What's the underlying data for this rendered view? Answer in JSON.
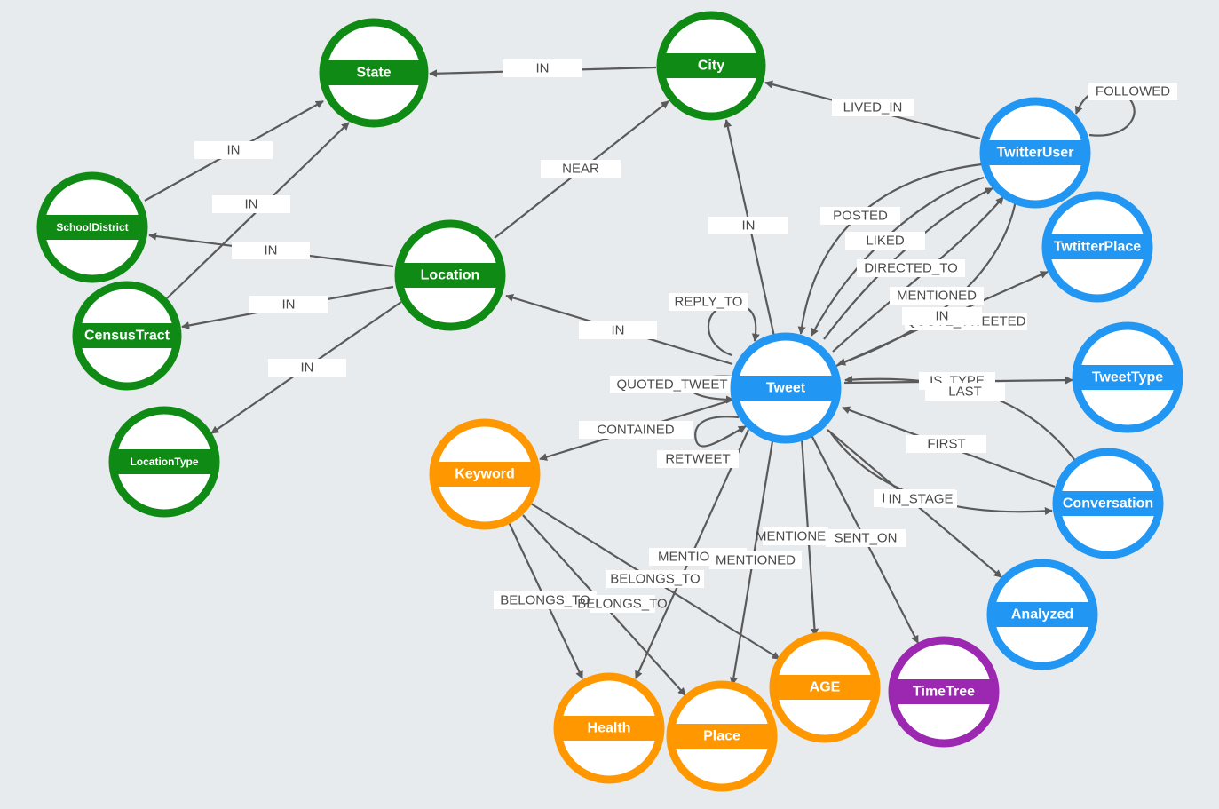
{
  "colors": {
    "location_group": "#0f8a14",
    "twitter_group": "#2196f3",
    "keyword_group": "#ff9800",
    "time_group": "#9c27b0",
    "edge": "#5a5a5a",
    "background": "#e8ebee"
  },
  "nodes": [
    {
      "id": "state",
      "label": "State",
      "color": "#0f8a14"
    },
    {
      "id": "city",
      "label": "City",
      "color": "#0f8a14"
    },
    {
      "id": "schooldistrict",
      "label": "SchoolDistrict",
      "color": "#0f8a14"
    },
    {
      "id": "censustract",
      "label": "CensusTract",
      "color": "#0f8a14"
    },
    {
      "id": "location",
      "label": "Location",
      "color": "#0f8a14"
    },
    {
      "id": "locationtype",
      "label": "LocationType",
      "color": "#0f8a14"
    },
    {
      "id": "twitteruser",
      "label": "TwitterUser",
      "color": "#2196f3"
    },
    {
      "id": "twtitterplace",
      "label": "TwtitterPlace",
      "color": "#2196f3"
    },
    {
      "id": "tweet",
      "label": "Tweet",
      "color": "#2196f3"
    },
    {
      "id": "tweettype",
      "label": "TweetType",
      "color": "#2196f3"
    },
    {
      "id": "conversation",
      "label": "Conversation",
      "color": "#2196f3"
    },
    {
      "id": "analyzed",
      "label": "Analyzed",
      "color": "#2196f3"
    },
    {
      "id": "keyword",
      "label": "Keyword",
      "color": "#ff9800"
    },
    {
      "id": "health",
      "label": "Health",
      "color": "#ff9800"
    },
    {
      "id": "place",
      "label": "Place",
      "color": "#ff9800"
    },
    {
      "id": "age",
      "label": "AGE",
      "color": "#ff9800"
    },
    {
      "id": "timetree",
      "label": "TimeTree",
      "color": "#9c27b0"
    }
  ],
  "edges": [
    {
      "id": "e_city_state",
      "from": "city",
      "to": "state",
      "label": "IN"
    },
    {
      "id": "e_sd_state",
      "from": "schooldistrict",
      "to": "state",
      "label": "IN"
    },
    {
      "id": "e_ct_state",
      "from": "censustract",
      "to": "state",
      "label": "IN"
    },
    {
      "id": "e_loc_city",
      "from": "location",
      "to": "city",
      "label": "NEAR"
    },
    {
      "id": "e_loc_sd",
      "from": "location",
      "to": "schooldistrict",
      "label": "IN"
    },
    {
      "id": "e_loc_ct",
      "from": "location",
      "to": "censustract",
      "label": "IN"
    },
    {
      "id": "e_loc_lt",
      "from": "location",
      "to": "locationtype",
      "label": "IN"
    },
    {
      "id": "e_tweet_loc",
      "from": "tweet",
      "to": "location",
      "label": "IN"
    },
    {
      "id": "e_tweet_city",
      "from": "tweet",
      "to": "city",
      "label": "IN"
    },
    {
      "id": "e_tu_city",
      "from": "twitteruser",
      "to": "city",
      "label": "LIVED_IN"
    },
    {
      "id": "e_tu_followed",
      "from": "twitteruser",
      "to": "twitteruser",
      "label": "FOLLOWED"
    },
    {
      "id": "e_tu_posted",
      "from": "twitteruser",
      "to": "tweet",
      "label": "POSTED"
    },
    {
      "id": "e_tu_liked",
      "from": "twitteruser",
      "to": "tweet",
      "label": "LIKED"
    },
    {
      "id": "e_tweet_dir",
      "from": "tweet",
      "to": "twitteruser",
      "label": "DIRECTED_TO"
    },
    {
      "id": "e_tweet_ment",
      "from": "tweet",
      "to": "twitteruser",
      "label": "MENTIONED"
    },
    {
      "id": "e_tu_quote",
      "from": "twitteruser",
      "to": "tweet",
      "label": "QUOTE_TWEETED"
    },
    {
      "id": "e_tweet_tp",
      "from": "tweet",
      "to": "twtitterplace",
      "label": "IN"
    },
    {
      "id": "e_tweet_reply",
      "from": "tweet",
      "to": "tweet",
      "label": "REPLY_TO"
    },
    {
      "id": "e_tweet_quoted",
      "from": "tweet",
      "to": "tweet",
      "label": "QUOTED_TWEET"
    },
    {
      "id": "e_tweet_retweet",
      "from": "tweet",
      "to": "tweet",
      "label": "RETWEET"
    },
    {
      "id": "e_tweet_type",
      "from": "tweet",
      "to": "tweettype",
      "label": "IS_TYPE"
    },
    {
      "id": "e_conv_last",
      "from": "conversation",
      "to": "tweet",
      "label": "LAST"
    },
    {
      "id": "e_conv_first",
      "from": "conversation",
      "to": "tweet",
      "label": "FIRST"
    },
    {
      "id": "e_tweet_conv",
      "from": "tweet",
      "to": "conversation",
      "label": "IN_STAGE"
    },
    {
      "id": "e_tweet_analyzed",
      "from": "tweet",
      "to": "analyzed",
      "label": "IN_STAGE"
    },
    {
      "id": "e_tweet_kw",
      "from": "tweet",
      "to": "keyword",
      "label": "CONTAINED"
    },
    {
      "id": "e_tweet_health",
      "from": "tweet",
      "to": "health",
      "label": "MENTIONED"
    },
    {
      "id": "e_tweet_place",
      "from": "tweet",
      "to": "place",
      "label": "MENTIONED"
    },
    {
      "id": "e_tweet_age",
      "from": "tweet",
      "to": "age",
      "label": "MENTIONED"
    },
    {
      "id": "e_tweet_time",
      "from": "tweet",
      "to": "timetree",
      "label": "SENT_ON"
    },
    {
      "id": "e_kw_health",
      "from": "keyword",
      "to": "health",
      "label": "BELONGS_TO"
    },
    {
      "id": "e_kw_place",
      "from": "keyword",
      "to": "place",
      "label": "BELONGS_TO"
    },
    {
      "id": "e_kw_age",
      "from": "keyword",
      "to": "age",
      "label": "BELONGS_TO"
    }
  ]
}
